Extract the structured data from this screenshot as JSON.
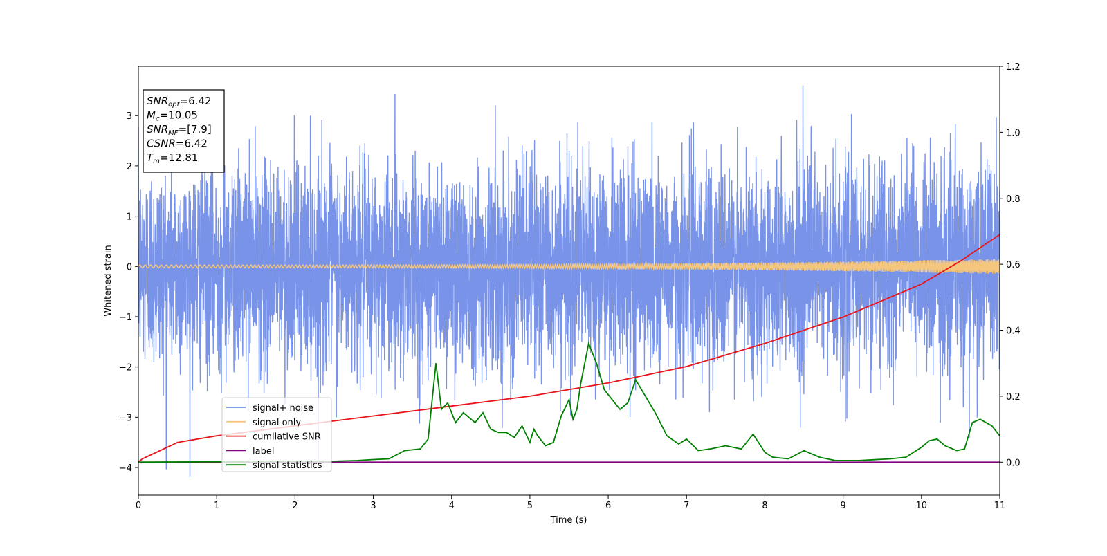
{
  "chart_data": {
    "type": "line",
    "xlabel": "Time (s)",
    "ylabel": "Whitened strain",
    "xlim": [
      0,
      11
    ],
    "ylim_left": [
      -4.55,
      3.98
    ],
    "ylim_right": [
      -0.1,
      1.2
    ],
    "xticks": [
      "0",
      "1",
      "2",
      "3",
      "4",
      "5",
      "6",
      "7",
      "8",
      "9",
      "10",
      "11"
    ],
    "yticks_left": [
      "−4",
      "−3",
      "−2",
      "−1",
      "0",
      "1",
      "2",
      "3"
    ],
    "yticks_right": [
      "0.0",
      "0.2",
      "0.4",
      "0.6",
      "0.8",
      "1.0",
      "1.2"
    ],
    "grid": false,
    "legend_position": "lower-left",
    "annotation": [
      {
        "main": "SNR",
        "sub": "opt",
        "value": "=6.42"
      },
      {
        "main": "M",
        "sub": "c",
        "value": "=10.05"
      },
      {
        "main": "SNR",
        "sub": "MF",
        "value": "=[7.9]"
      },
      {
        "main": "CSNR",
        "sub": "",
        "value": "=6.42"
      },
      {
        "main": "T",
        "sub": "m",
        "value": "=12.81"
      }
    ],
    "series": [
      {
        "name": "signal+ noise",
        "axis": "left",
        "color": "#7893e8",
        "description_values": {
          "approx_range": [
            -4.2,
            3.6
          ],
          "mean": 0,
          "typical_std": 1.0
        }
      },
      {
        "name": "signal only",
        "axis": "left",
        "color": "#f5c77e",
        "description_values": {
          "oscillation_amplitude_start": 0.03,
          "oscillation_amplitude_end": 0.15
        }
      },
      {
        "name": "cumilative SNR",
        "axis": "right",
        "color": "#e8141a",
        "x": [
          0,
          0.05,
          0.5,
          1,
          2,
          3,
          4,
          5,
          6,
          7,
          8,
          9,
          10,
          10.5,
          11
        ],
        "y": [
          0.0,
          0.01,
          0.06,
          0.08,
          0.11,
          0.14,
          0.17,
          0.2,
          0.24,
          0.29,
          0.36,
          0.44,
          0.54,
          0.61,
          0.69
        ]
      },
      {
        "name": "label",
        "axis": "right",
        "color": "#800080",
        "x": [
          0,
          11
        ],
        "y": [
          0,
          0
        ]
      },
      {
        "name": "signal statistics",
        "axis": "right",
        "color": "#008000",
        "x": [
          0,
          2.5,
          2.8,
          3.0,
          3.2,
          3.4,
          3.6,
          3.7,
          3.8,
          3.87,
          3.95,
          4.05,
          4.15,
          4.3,
          4.4,
          4.5,
          4.6,
          4.7,
          4.8,
          4.9,
          5.0,
          5.05,
          5.1,
          5.2,
          5.3,
          5.4,
          5.5,
          5.55,
          5.6,
          5.65,
          5.75,
          5.85,
          5.95,
          6.05,
          6.15,
          6.25,
          6.35,
          6.45,
          6.6,
          6.75,
          6.9,
          7.0,
          7.15,
          7.3,
          7.5,
          7.7,
          7.85,
          8.0,
          8.1,
          8.3,
          8.5,
          8.7,
          8.9,
          9.2,
          9.6,
          9.8,
          10.0,
          10.1,
          10.2,
          10.3,
          10.45,
          10.55,
          10.6,
          10.65,
          10.75,
          10.9,
          11.0
        ],
        "y": [
          0.0,
          0.003,
          0.005,
          0.008,
          0.01,
          0.035,
          0.04,
          0.07,
          0.3,
          0.16,
          0.18,
          0.12,
          0.15,
          0.12,
          0.15,
          0.1,
          0.09,
          0.09,
          0.075,
          0.11,
          0.06,
          0.1,
          0.08,
          0.05,
          0.06,
          0.14,
          0.19,
          0.13,
          0.16,
          0.24,
          0.36,
          0.3,
          0.22,
          0.19,
          0.16,
          0.18,
          0.25,
          0.21,
          0.15,
          0.08,
          0.055,
          0.07,
          0.035,
          0.04,
          0.05,
          0.04,
          0.085,
          0.03,
          0.015,
          0.01,
          0.035,
          0.015,
          0.005,
          0.005,
          0.01,
          0.015,
          0.045,
          0.065,
          0.07,
          0.05,
          0.035,
          0.04,
          0.08,
          0.12,
          0.13,
          0.11,
          0.08
        ]
      }
    ]
  }
}
